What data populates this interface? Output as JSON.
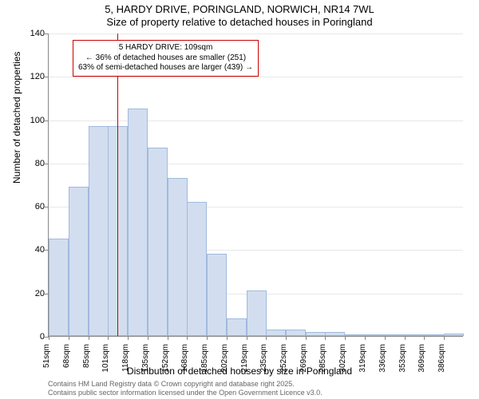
{
  "title_line1": "5, HARDY DRIVE, PORINGLAND, NORWICH, NR14 7WL",
  "title_line2": "Size of property relative to detached houses in Poringland",
  "y_axis_label": "Number of detached properties",
  "x_axis_label": "Distribution of detached houses by size in Poringland",
  "footer1": "Contains HM Land Registry data © Crown copyright and database right 2025.",
  "footer2": "Contains public sector information licensed under the Open Government Licence v3.0.",
  "chart": {
    "type": "histogram",
    "ylim": [
      0,
      140
    ],
    "ytick_step": 20,
    "bar_color": "#d2deef",
    "bar_border_color": "#a1b9dd",
    "grid_color": "#e8e8e8",
    "axis_color": "#888888",
    "background_color": "#ffffff",
    "marker_color": "#cc0000",
    "x_labels": [
      "51sqm",
      "68sqm",
      "85sqm",
      "101sqm",
      "118sqm",
      "135sqm",
      "152sqm",
      "168sqm",
      "185sqm",
      "202sqm",
      "219sqm",
      "235sqm",
      "252sqm",
      "269sqm",
      "285sqm",
      "302sqm",
      "319sqm",
      "336sqm",
      "353sqm",
      "369sqm",
      "386sqm"
    ],
    "x_values": [
      51,
      68,
      85,
      101,
      118,
      135,
      152,
      168,
      185,
      202,
      219,
      235,
      252,
      269,
      285,
      302,
      319,
      336,
      353,
      369,
      386
    ],
    "values": [
      45,
      69,
      97,
      97,
      105,
      87,
      73,
      62,
      38,
      8,
      21,
      3,
      3,
      2,
      2,
      0,
      0,
      0,
      0,
      0,
      1
    ],
    "marker_x_value": 109,
    "annotation": {
      "line1": "5 HARDY DRIVE: 109sqm",
      "line2": "← 36% of detached houses are smaller (251)",
      "line3": "63% of semi-detached houses are larger (439) →"
    }
  }
}
